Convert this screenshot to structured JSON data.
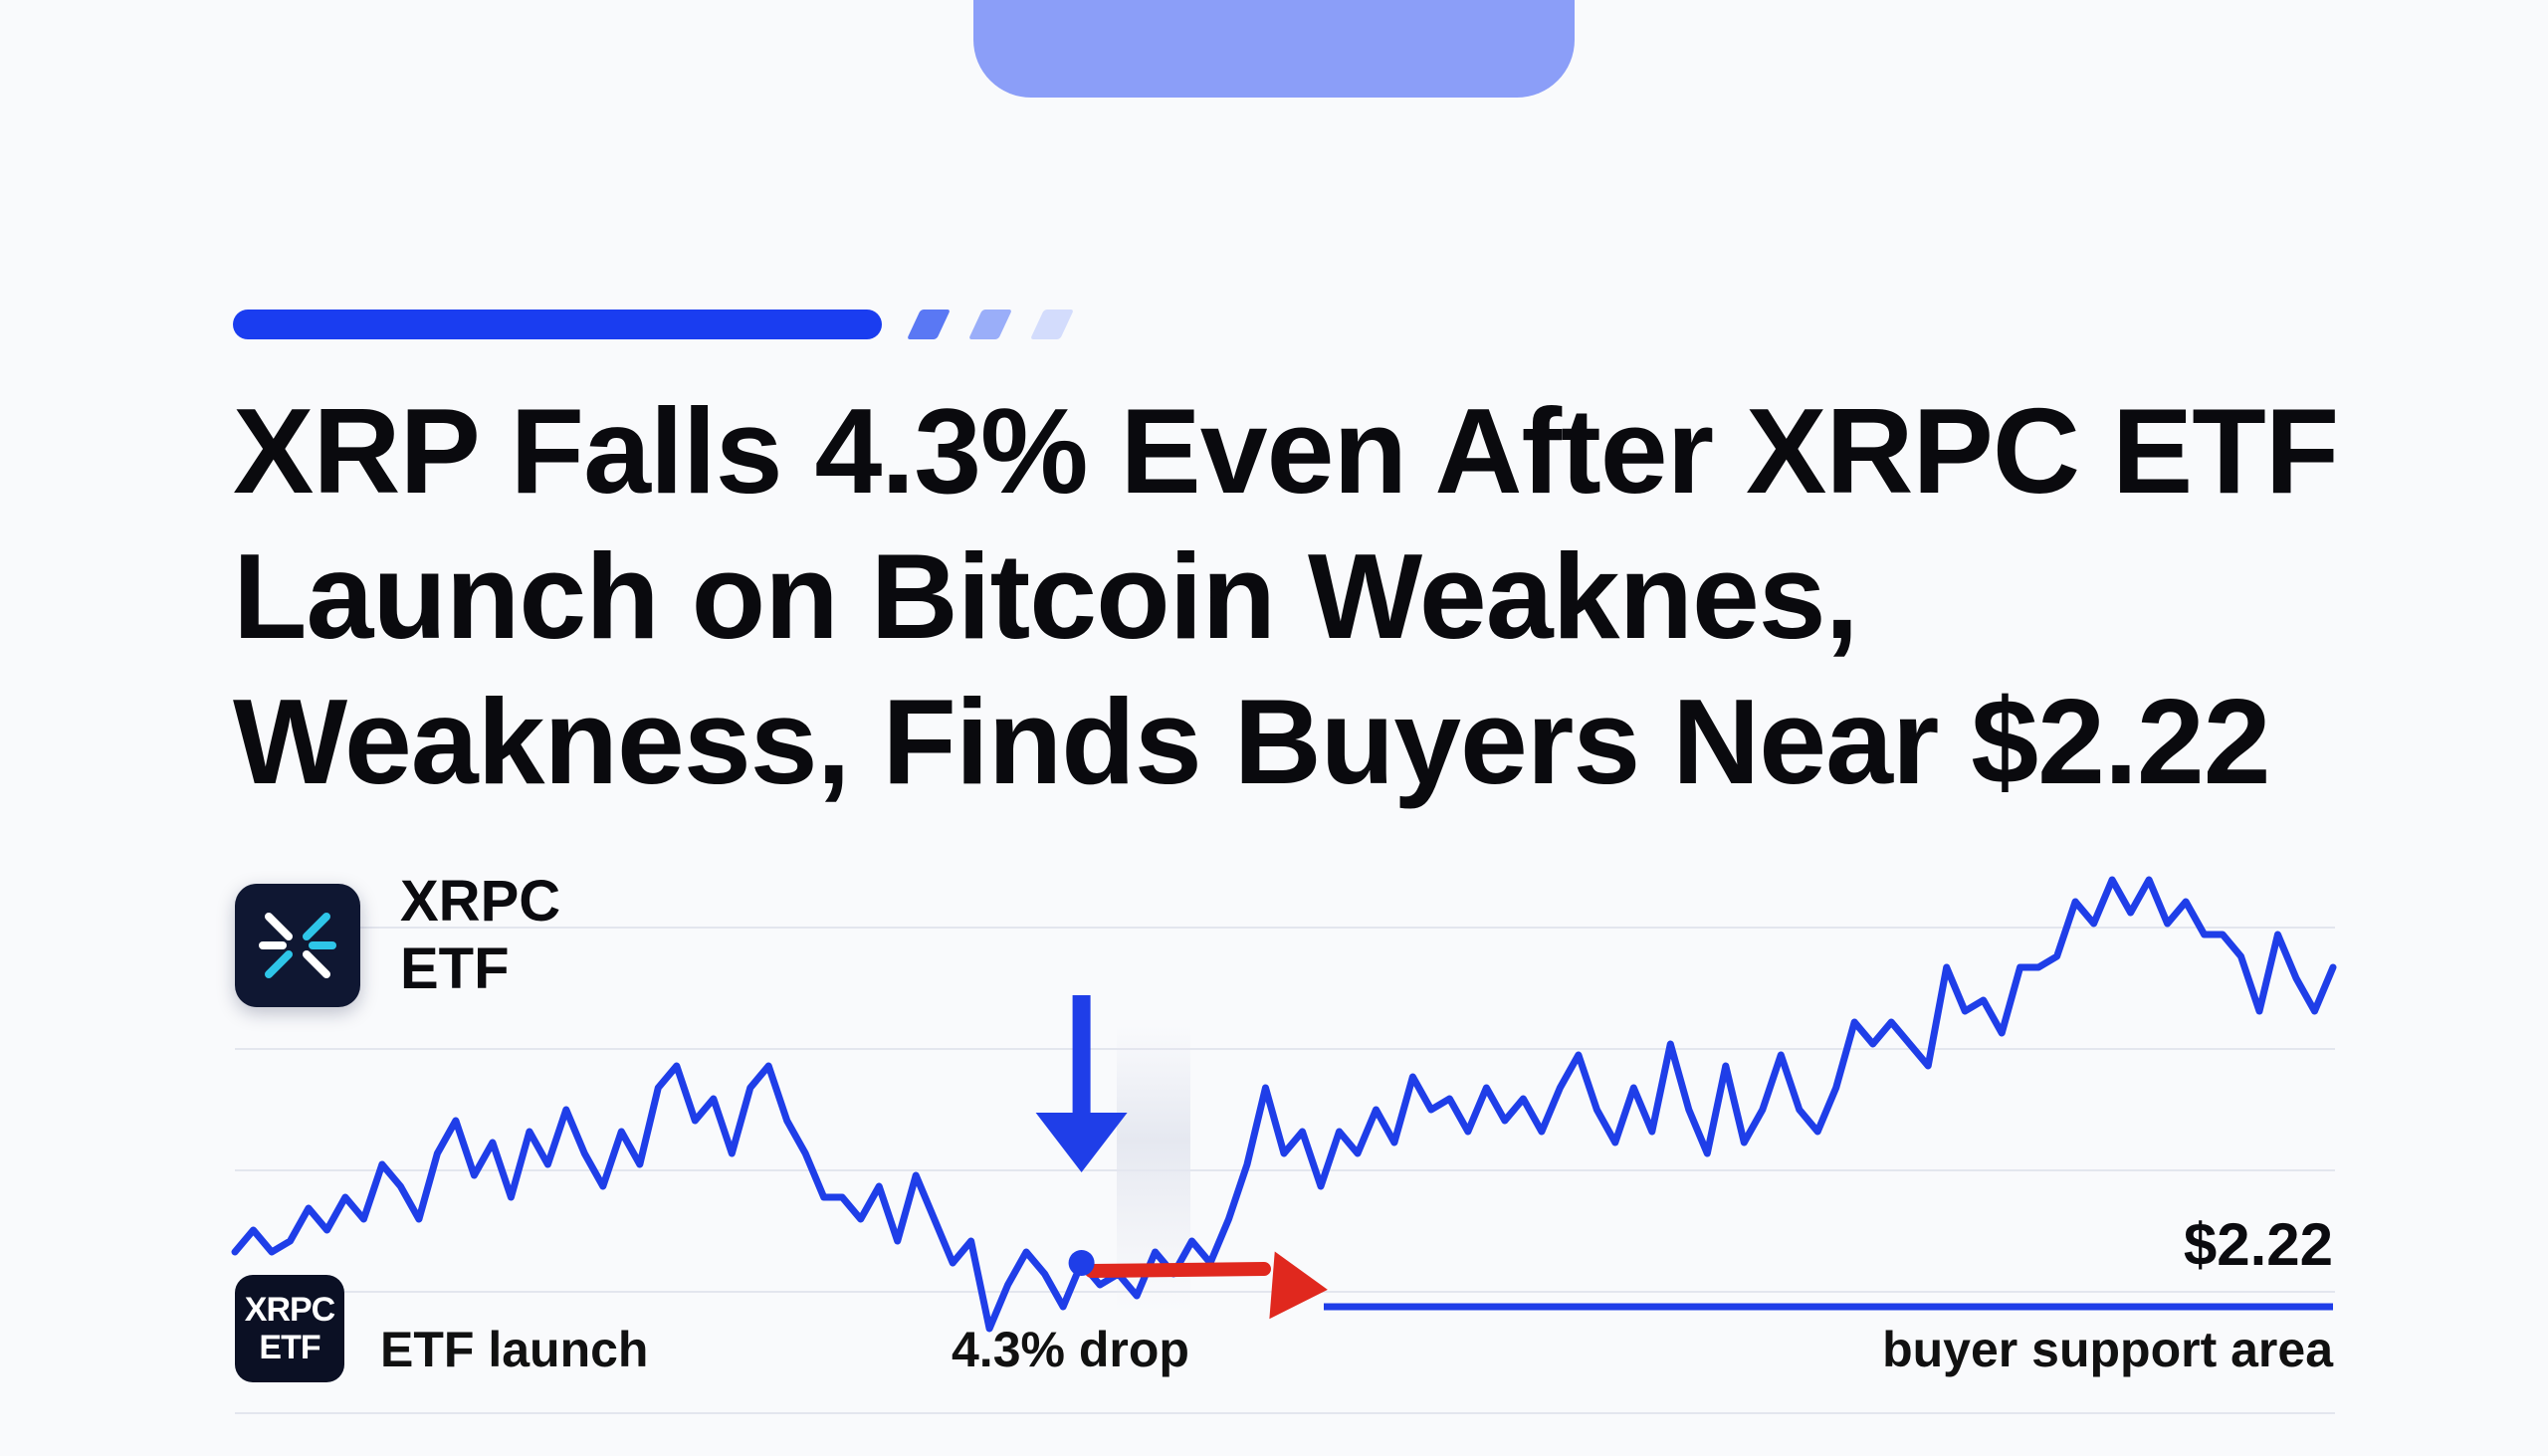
{
  "headline": {
    "line1": "XRP Falls 4.3% Even After XRPC ETF",
    "line2": "Launch on Bitcoin Weaknes,",
    "line3": "Weakness, Finds Buyers Near $2.22"
  },
  "etf": {
    "name_line1": "XRPC",
    "name_line2": "ETF",
    "badge_line1": "XRPC",
    "badge_line2": "ETF"
  },
  "colors": {
    "line": "#1f3ee8",
    "accent": "#1a3df0",
    "drop_arrow": "#e0281e",
    "support_line": "#1f3ee8",
    "top_tab": "#8b9ef8",
    "icon_bg": "#0f1732"
  },
  "chart_data": {
    "type": "line",
    "title": "",
    "xlabel": "",
    "ylabel": "",
    "grid": true,
    "x": [
      0,
      1,
      2,
      3,
      4,
      5,
      6,
      7,
      8,
      9,
      10,
      11,
      12,
      13,
      14,
      15,
      16,
      17,
      18,
      19,
      20,
      21,
      22,
      23,
      24,
      25,
      26,
      27,
      28,
      29,
      30,
      31,
      32,
      33,
      34,
      35,
      36,
      37,
      38,
      39,
      40,
      41,
      42,
      43,
      44,
      45,
      46,
      47,
      48,
      49,
      50,
      51,
      52,
      53,
      54,
      55,
      56,
      57,
      58,
      59,
      60,
      61,
      62,
      63,
      64,
      65,
      66,
      67,
      68,
      69,
      70,
      71,
      72,
      73,
      74,
      75,
      76,
      77,
      78,
      79,
      80,
      81,
      82,
      83,
      84,
      85,
      86,
      87,
      88,
      89,
      90,
      91,
      92,
      93,
      94,
      95,
      96,
      97,
      98,
      99,
      100,
      101,
      102,
      103,
      104,
      105,
      106,
      107,
      108,
      109,
      110,
      111,
      112,
      113,
      114
    ],
    "series": [
      {
        "values": [
          2.27,
          2.29,
          2.27,
          2.28,
          2.31,
          2.29,
          2.32,
          2.3,
          2.35,
          2.33,
          2.3,
          2.36,
          2.39,
          2.34,
          2.37,
          2.32,
          2.38,
          2.35,
          2.4,
          2.36,
          2.33,
          2.38,
          2.35,
          2.42,
          2.44,
          2.39,
          2.41,
          2.36,
          2.42,
          2.44,
          2.39,
          2.36,
          2.32,
          2.32,
          2.3,
          2.33,
          2.28,
          2.34,
          2.3,
          2.26,
          2.28,
          2.2,
          2.24,
          2.27,
          2.25,
          2.22,
          2.26,
          2.24,
          2.25,
          2.23,
          2.27,
          2.25,
          2.28,
          2.26,
          2.3,
          2.35,
          2.42,
          2.36,
          2.38,
          2.33,
          2.38,
          2.36,
          2.4,
          2.37,
          2.43,
          2.4,
          2.41,
          2.38,
          2.42,
          2.39,
          2.41,
          2.38,
          2.42,
          2.45,
          2.4,
          2.37,
          2.42,
          2.38,
          2.46,
          2.4,
          2.36,
          2.44,
          2.37,
          2.4,
          2.45,
          2.4,
          2.38,
          2.42,
          2.48,
          2.46,
          2.48,
          2.46,
          2.44,
          2.53,
          2.49,
          2.5,
          2.47,
          2.53,
          2.53,
          2.54,
          2.59,
          2.57,
          2.61,
          2.58,
          2.61,
          2.57,
          2.59,
          2.56,
          2.56,
          2.54,
          2.49,
          2.56,
          2.52,
          2.49,
          2.53
        ]
      }
    ],
    "ylim": [
      2.15,
      2.65
    ],
    "support_level": 2.22,
    "support_label": "$2.22",
    "annotations": {
      "launch_label": "ETF launch",
      "drop_label": "4.3% drop",
      "support_area_label": "buyer support area"
    },
    "launch_index": 46
  }
}
